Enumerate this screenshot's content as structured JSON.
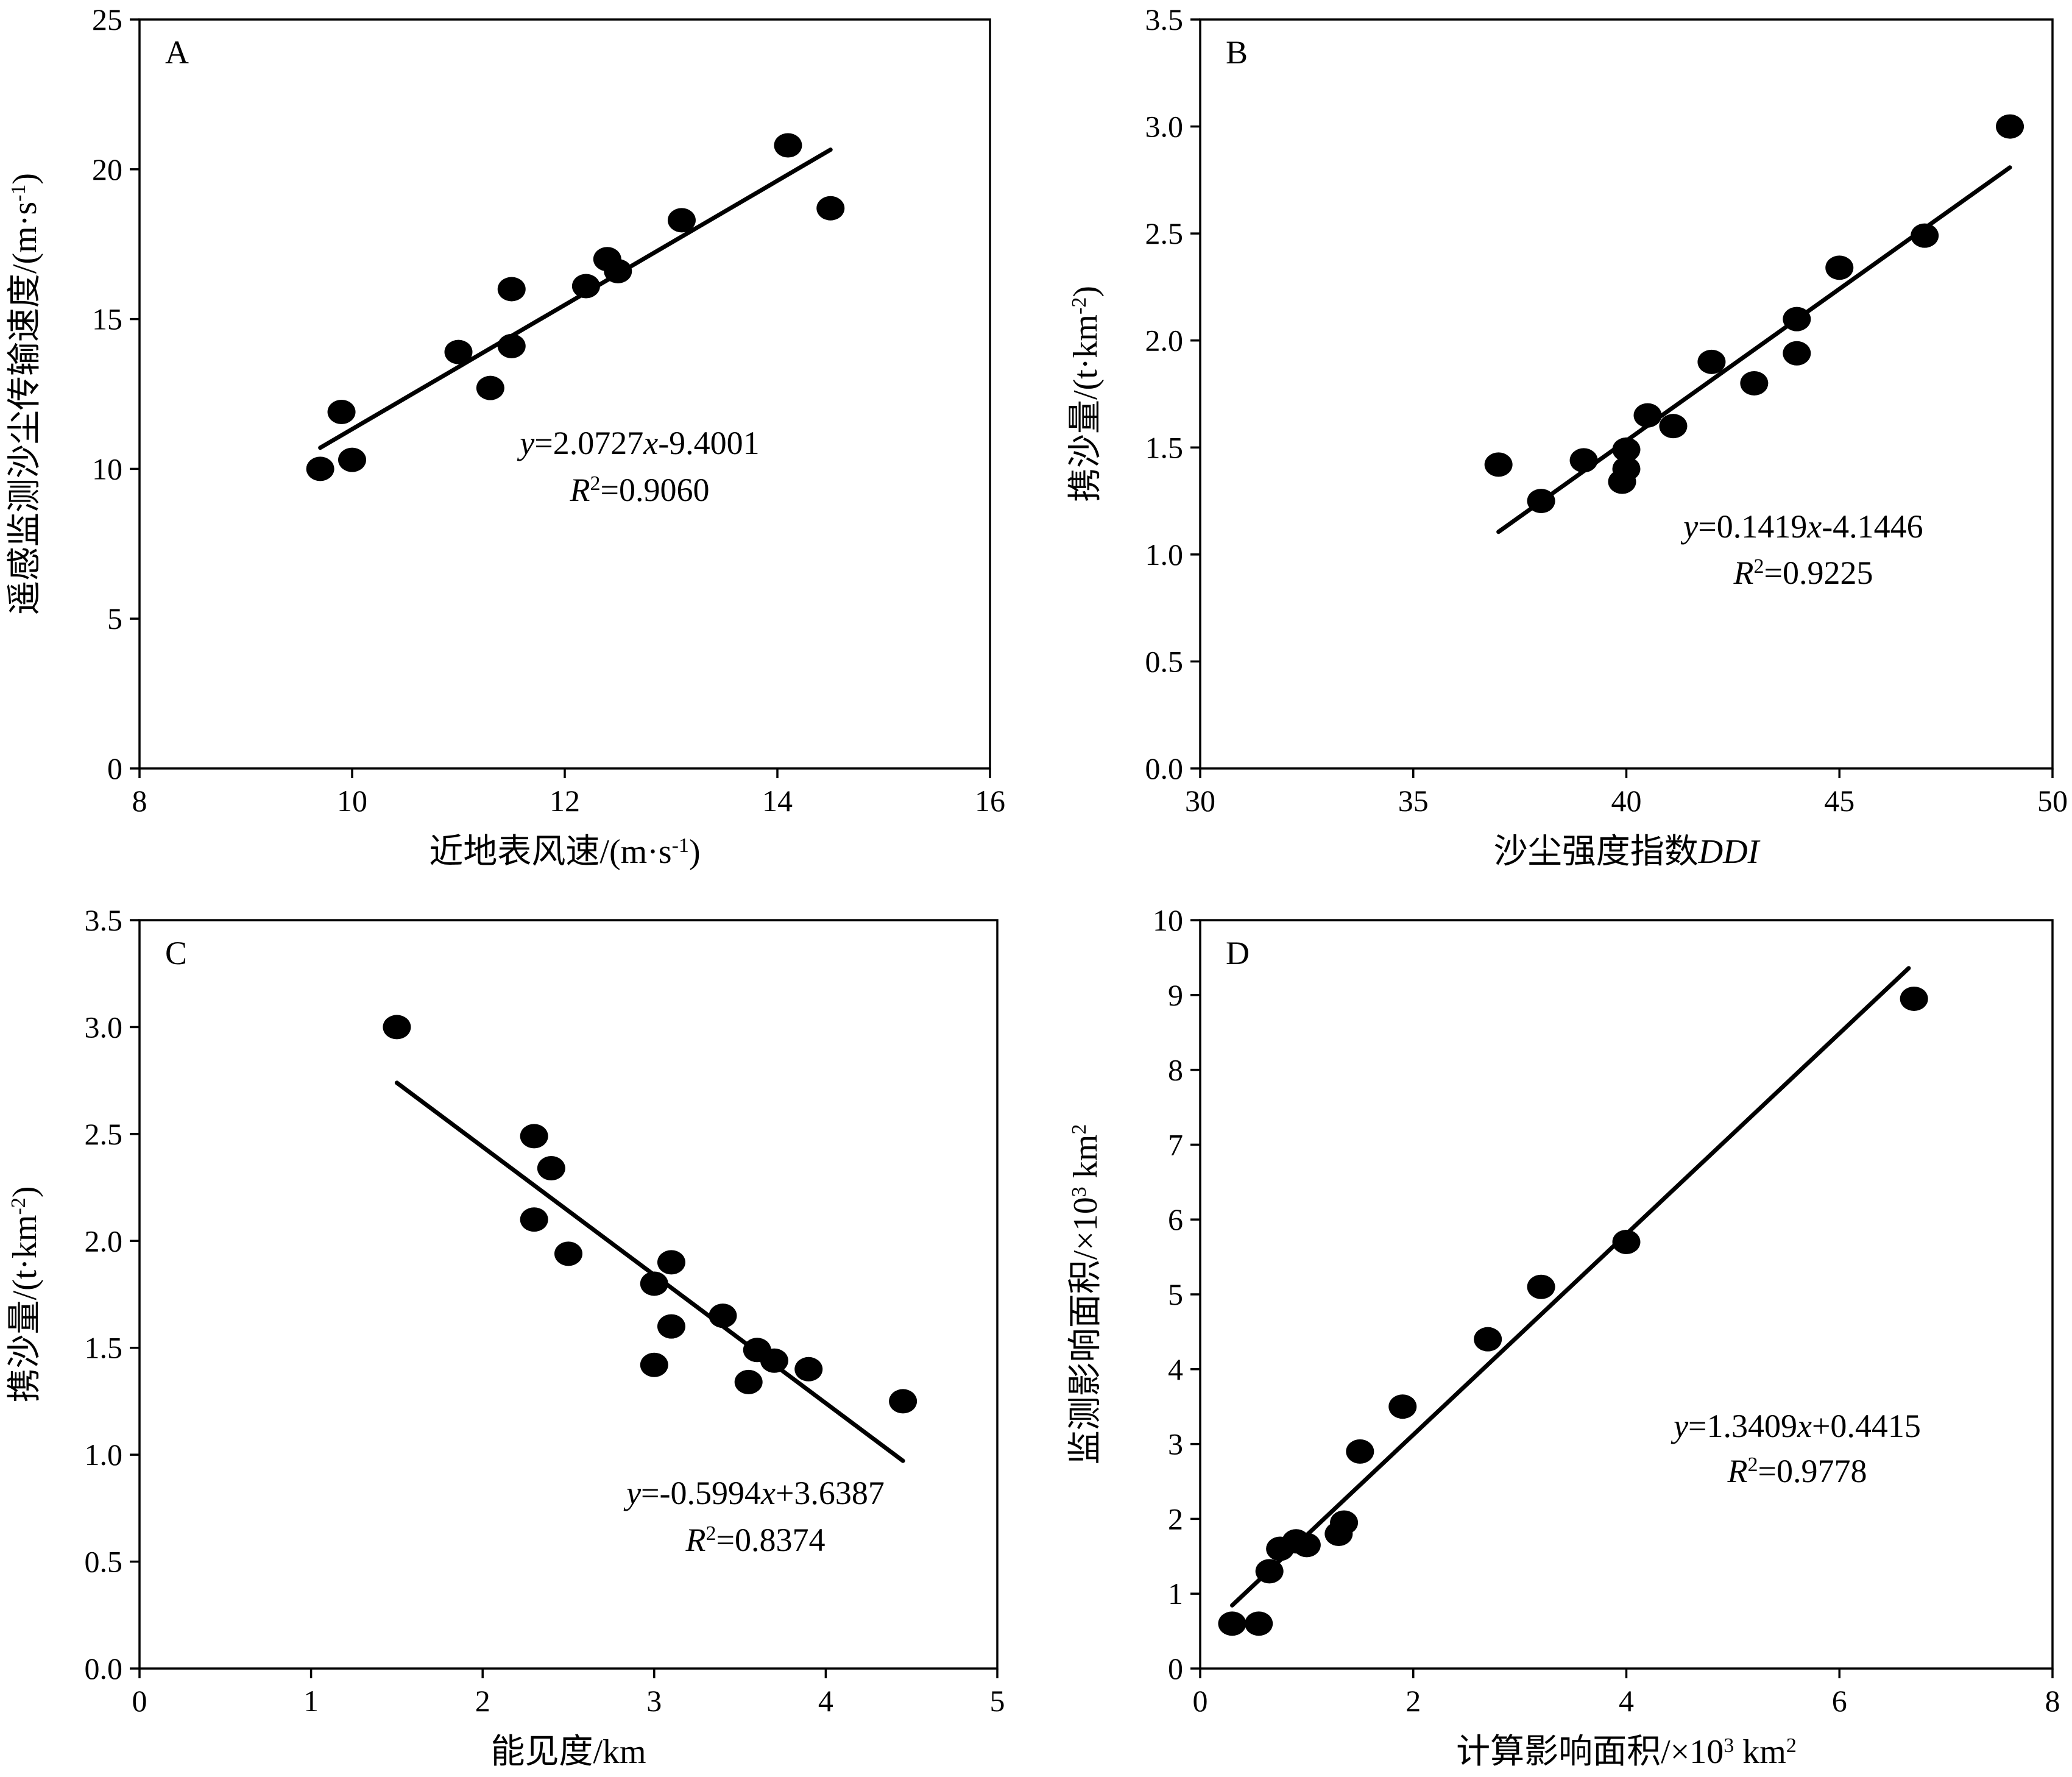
{
  "chart_data": [
    {
      "panel": "A",
      "type": "scatter",
      "xlabel": "近地表风速/(m·s",
      "xlabel_sup": "-1",
      "xlabel_tail": ")",
      "ylabel": "遥感监测沙尘传输速度/(m·s",
      "ylabel_sup": "-1",
      "ylabel_tail": ")",
      "xlim": [
        8,
        16
      ],
      "ylim": [
        0,
        25
      ],
      "xticks": [
        8,
        10,
        12,
        14,
        16
      ],
      "yticks": [
        0,
        5,
        10,
        15,
        20,
        25
      ],
      "xtick_labels": [
        "8",
        "10",
        "12",
        "14",
        "16"
      ],
      "ytick_labels": [
        "0",
        "5",
        "10",
        "15",
        "20",
        "25"
      ],
      "points": [
        {
          "x": 9.7,
          "y": 10.0
        },
        {
          "x": 9.9,
          "y": 11.9
        },
        {
          "x": 10.0,
          "y": 10.3
        },
        {
          "x": 11.0,
          "y": 13.9
        },
        {
          "x": 11.3,
          "y": 12.7
        },
        {
          "x": 11.5,
          "y": 14.1
        },
        {
          "x": 11.5,
          "y": 16.0
        },
        {
          "x": 12.2,
          "y": 16.1
        },
        {
          "x": 12.4,
          "y": 17.0
        },
        {
          "x": 12.5,
          "y": 16.6
        },
        {
          "x": 13.1,
          "y": 18.3
        },
        {
          "x": 14.1,
          "y": 20.8
        },
        {
          "x": 14.5,
          "y": 18.7
        }
      ],
      "fit": {
        "slope": 2.0727,
        "intercept": -9.4001,
        "x_range": [
          9.7,
          14.5
        ]
      },
      "equation": {
        "y_var": "y",
        "eq_rest": "=2.0727",
        "x_var": "x",
        "eq_tail": "-9.4001"
      },
      "r2": {
        "r": "R",
        "sup": "2",
        "value": "=0.9060"
      }
    },
    {
      "panel": "B",
      "type": "scatter",
      "xlabel": "沙尘强度指数",
      "xlabel_italic": "DDI",
      "ylabel": "携沙量/(t·km",
      "ylabel_sup": "-2",
      "ylabel_tail": ")",
      "xlim": [
        30,
        50
      ],
      "ylim": [
        0,
        3.5
      ],
      "xticks": [
        30,
        35,
        40,
        45,
        50
      ],
      "yticks": [
        0,
        0.5,
        1.0,
        1.5,
        2.0,
        2.5,
        3.0,
        3.5
      ],
      "xtick_labels": [
        "30",
        "35",
        "40",
        "45",
        "50"
      ],
      "ytick_labels": [
        "0.0",
        "0.5",
        "1.0",
        "1.5",
        "2.0",
        "2.5",
        "3.0",
        "3.5"
      ],
      "points": [
        {
          "x": 37.0,
          "y": 1.42
        },
        {
          "x": 38.0,
          "y": 1.25
        },
        {
          "x": 39.0,
          "y": 1.44
        },
        {
          "x": 39.9,
          "y": 1.34
        },
        {
          "x": 40.0,
          "y": 1.4
        },
        {
          "x": 40.0,
          "y": 1.49
        },
        {
          "x": 40.5,
          "y": 1.65
        },
        {
          "x": 41.1,
          "y": 1.6
        },
        {
          "x": 42.0,
          "y": 1.9
        },
        {
          "x": 43.0,
          "y": 1.8
        },
        {
          "x": 44.0,
          "y": 2.1
        },
        {
          "x": 44.0,
          "y": 1.94
        },
        {
          "x": 45.0,
          "y": 2.34
        },
        {
          "x": 47.0,
          "y": 2.49
        },
        {
          "x": 49.0,
          "y": 3.0
        }
      ],
      "fit": {
        "slope": 0.1419,
        "intercept": -4.1446,
        "x_range": [
          37.0,
          49.0
        ]
      },
      "equation": {
        "y_var": "y",
        "eq_rest": "=0.1419",
        "x_var": "x",
        "eq_tail": "-4.1446"
      },
      "r2": {
        "r": "R",
        "sup": "2",
        "value": "=0.9225"
      }
    },
    {
      "panel": "C",
      "type": "scatter",
      "xlabel": "能见度/km",
      "ylabel": "携沙量/(t·km",
      "ylabel_sup": "-2",
      "ylabel_tail": ")",
      "xlim": [
        0,
        5
      ],
      "ylim": [
        0,
        3.5
      ],
      "xticks": [
        0,
        1,
        2,
        3,
        4,
        5
      ],
      "yticks": [
        0,
        0.5,
        1.0,
        1.5,
        2.0,
        2.5,
        3.0,
        3.5
      ],
      "xtick_labels": [
        "0",
        "1",
        "2",
        "3",
        "4",
        "5"
      ],
      "ytick_labels": [
        "0.0",
        "0.5",
        "1.0",
        "1.5",
        "2.0",
        "2.5",
        "3.0",
        "3.5"
      ],
      "points": [
        {
          "x": 1.5,
          "y": 3.0
        },
        {
          "x": 2.3,
          "y": 2.49
        },
        {
          "x": 2.3,
          "y": 2.1
        },
        {
          "x": 2.4,
          "y": 2.34
        },
        {
          "x": 2.5,
          "y": 1.94
        },
        {
          "x": 3.0,
          "y": 1.8
        },
        {
          "x": 3.0,
          "y": 1.42
        },
        {
          "x": 3.1,
          "y": 1.9
        },
        {
          "x": 3.1,
          "y": 1.6
        },
        {
          "x": 3.4,
          "y": 1.65
        },
        {
          "x": 3.55,
          "y": 1.34
        },
        {
          "x": 3.6,
          "y": 1.49
        },
        {
          "x": 3.7,
          "y": 1.44
        },
        {
          "x": 3.9,
          "y": 1.4
        },
        {
          "x": 4.45,
          "y": 1.25
        }
      ],
      "fit": {
        "slope": -0.5994,
        "intercept": 3.6387,
        "x_range": [
          1.5,
          4.45
        ]
      },
      "equation": {
        "y_var": "y",
        "eq_rest": "=-0.5994",
        "x_var": "x",
        "eq_tail": "+3.6387"
      },
      "r2": {
        "r": "R",
        "sup": "2",
        "value": "=0.8374"
      }
    },
    {
      "panel": "D",
      "type": "scatter",
      "xlabel": "计算影响面积/×10",
      "xlabel_sup": "3",
      "xlabel_tail": " km",
      "xlabel_sup2": "2",
      "ylabel": "监测影响面积/×10",
      "ylabel_sup": "3",
      "ylabel_tail": " km",
      "ylabel_sup2": "2",
      "xlim": [
        0,
        8
      ],
      "ylim": [
        0,
        10
      ],
      "xticks": [
        0,
        2,
        4,
        6,
        8
      ],
      "yticks": [
        0,
        1,
        2,
        3,
        4,
        5,
        6,
        7,
        8,
        9,
        10
      ],
      "xtick_labels": [
        "0",
        "2",
        "4",
        "6",
        "8"
      ],
      "ytick_labels": [
        "0",
        "1",
        "2",
        "3",
        "4",
        "5",
        "6",
        "7",
        "8",
        "9",
        "10"
      ],
      "points": [
        {
          "x": 0.3,
          "y": 0.6
        },
        {
          "x": 0.55,
          "y": 0.6
        },
        {
          "x": 0.65,
          "y": 1.3
        },
        {
          "x": 0.75,
          "y": 1.6
        },
        {
          "x": 0.9,
          "y": 1.7
        },
        {
          "x": 1.0,
          "y": 1.65
        },
        {
          "x": 1.3,
          "y": 1.8
        },
        {
          "x": 1.35,
          "y": 1.95
        },
        {
          "x": 1.5,
          "y": 2.9
        },
        {
          "x": 1.9,
          "y": 3.5
        },
        {
          "x": 2.7,
          "y": 4.4
        },
        {
          "x": 3.2,
          "y": 5.1
        },
        {
          "x": 4.0,
          "y": 5.7
        },
        {
          "x": 6.7,
          "y": 8.95
        }
      ],
      "fit": {
        "slope": 1.3409,
        "intercept": 0.4415,
        "x_range": [
          0.3,
          6.65
        ]
      },
      "equation": {
        "y_var": "y",
        "eq_rest": "=1.3409",
        "x_var": "x",
        "eq_tail": "+0.4415"
      },
      "r2": {
        "r": "R",
        "sup": "2",
        "value": "=0.9778"
      }
    }
  ]
}
